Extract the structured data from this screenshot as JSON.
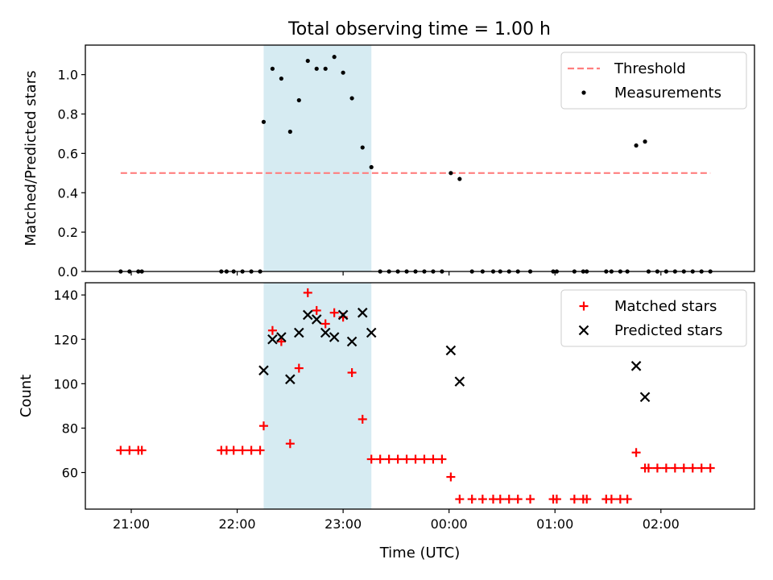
{
  "figure_title": "Total observing time = 1.00 h",
  "colors": {
    "threshold": "#ff7f7f",
    "measurements": "#000000",
    "matched": "#ff0000",
    "predicted": "#000000",
    "highlight": "#add8e6"
  },
  "chart_data": [
    {
      "type": "scatter",
      "title": "Total observing time = 1.00 h",
      "xlabel": "",
      "ylabel": "Matched/Predicted stars",
      "xlim": [
        "20:34",
        "02:53"
      ],
      "ylim": [
        0,
        1.15
      ],
      "x_ticks": [
        "21:00",
        "22:00",
        "23:00",
        "00:00",
        "01:00",
        "02:00"
      ],
      "y_ticks": [
        "0.0",
        "0.2",
        "0.4",
        "0.6",
        "0.8",
        "1.0"
      ],
      "legend": {
        "position": "top-right",
        "entries": [
          "Threshold",
          "Measurements"
        ]
      },
      "highlight_span": {
        "start": "22:15",
        "end": "23:16"
      },
      "threshold": {
        "name": "Threshold",
        "y": 0.5,
        "x_start": "20:54",
        "x_end": "02:28"
      },
      "series": [
        {
          "name": "Measurements",
          "marker": "dot",
          "points": [
            [
              "20:54",
              0
            ],
            [
              "20:59",
              0
            ],
            [
              "21:04",
              0
            ],
            [
              "21:06",
              0
            ],
            [
              "21:51",
              0
            ],
            [
              "21:54",
              0
            ],
            [
              "21:58",
              0
            ],
            [
              "22:03",
              0
            ],
            [
              "22:08",
              0
            ],
            [
              "22:13",
              0
            ],
            [
              "22:15",
              0.76
            ],
            [
              "22:20",
              1.03
            ],
            [
              "22:25",
              0.98
            ],
            [
              "22:30",
              0.71
            ],
            [
              "22:35",
              0.87
            ],
            [
              "22:40",
              1.07
            ],
            [
              "22:45",
              1.03
            ],
            [
              "22:50",
              1.03
            ],
            [
              "22:55",
              1.09
            ],
            [
              "23:00",
              1.01
            ],
            [
              "23:05",
              0.88
            ],
            [
              "23:11",
              0.63
            ],
            [
              "23:16",
              0.53
            ],
            [
              "23:21",
              0
            ],
            [
              "23:26",
              0
            ],
            [
              "23:31",
              0
            ],
            [
              "23:36",
              0
            ],
            [
              "23:41",
              0
            ],
            [
              "23:46",
              0
            ],
            [
              "23:51",
              0
            ],
            [
              "23:56",
              0
            ],
            [
              "00:01",
              0.5
            ],
            [
              "00:06",
              0.47
            ],
            [
              "00:13",
              0
            ],
            [
              "00:19",
              0
            ],
            [
              "00:25",
              0
            ],
            [
              "00:29",
              0
            ],
            [
              "00:34",
              0
            ],
            [
              "00:39",
              0
            ],
            [
              "00:46",
              0
            ],
            [
              "00:59",
              0
            ],
            [
              "01:01",
              0
            ],
            [
              "01:11",
              0
            ],
            [
              "01:16",
              0
            ],
            [
              "01:18",
              0
            ],
            [
              "01:29",
              0
            ],
            [
              "01:32",
              0
            ],
            [
              "01:37",
              0
            ],
            [
              "01:41",
              0
            ],
            [
              "01:46",
              0.64
            ],
            [
              "01:51",
              0.66
            ],
            [
              "01:53",
              0
            ],
            [
              "01:58",
              0
            ],
            [
              "02:03",
              0
            ],
            [
              "02:08",
              0
            ],
            [
              "02:13",
              0
            ],
            [
              "02:18",
              0
            ],
            [
              "02:23",
              0
            ],
            [
              "02:28",
              0
            ]
          ]
        }
      ]
    },
    {
      "type": "scatter",
      "title": "",
      "xlabel": "Time (UTC)",
      "ylabel": "Count",
      "xlim": [
        "20:34",
        "02:53"
      ],
      "ylim": [
        43.5,
        145.5
      ],
      "x_ticks": [
        "21:00",
        "22:00",
        "23:00",
        "00:00",
        "01:00",
        "02:00"
      ],
      "y_ticks": [
        "60",
        "80",
        "100",
        "120",
        "140"
      ],
      "legend": {
        "position": "top-right",
        "entries": [
          "Matched stars",
          "Predicted stars"
        ]
      },
      "highlight_span": {
        "start": "22:15",
        "end": "23:16"
      },
      "series": [
        {
          "name": "Matched stars",
          "marker": "plus",
          "points": [
            [
              "20:54",
              70
            ],
            [
              "20:59",
              70
            ],
            [
              "21:04",
              70
            ],
            [
              "21:06",
              70
            ],
            [
              "21:51",
              70
            ],
            [
              "21:54",
              70
            ],
            [
              "21:58",
              70
            ],
            [
              "22:03",
              70
            ],
            [
              "22:08",
              70
            ],
            [
              "22:13",
              70
            ],
            [
              "22:15",
              81
            ],
            [
              "22:20",
              124
            ],
            [
              "22:25",
              119
            ],
            [
              "22:30",
              73
            ],
            [
              "22:35",
              107
            ],
            [
              "22:40",
              141
            ],
            [
              "22:45",
              133
            ],
            [
              "22:50",
              127
            ],
            [
              "22:55",
              132
            ],
            [
              "23:00",
              130
            ],
            [
              "23:05",
              105
            ],
            [
              "23:11",
              84
            ],
            [
              "23:16",
              66
            ],
            [
              "23:21",
              66
            ],
            [
              "23:26",
              66
            ],
            [
              "23:31",
              66
            ],
            [
              "23:36",
              66
            ],
            [
              "23:41",
              66
            ],
            [
              "23:46",
              66
            ],
            [
              "23:51",
              66
            ],
            [
              "23:56",
              66
            ],
            [
              "00:01",
              58
            ],
            [
              "00:06",
              48
            ],
            [
              "00:13",
              48
            ],
            [
              "00:19",
              48
            ],
            [
              "00:25",
              48
            ],
            [
              "00:29",
              48
            ],
            [
              "00:34",
              48
            ],
            [
              "00:39",
              48
            ],
            [
              "00:46",
              48
            ],
            [
              "00:59",
              48
            ],
            [
              "01:01",
              48
            ],
            [
              "01:11",
              48
            ],
            [
              "01:16",
              48
            ],
            [
              "01:18",
              48
            ],
            [
              "01:29",
              48
            ],
            [
              "01:32",
              48
            ],
            [
              "01:37",
              48
            ],
            [
              "01:41",
              48
            ],
            [
              "01:46",
              69
            ],
            [
              "01:51",
              62
            ],
            [
              "01:53",
              62
            ],
            [
              "01:58",
              62
            ],
            [
              "02:03",
              62
            ],
            [
              "02:08",
              62
            ],
            [
              "02:13",
              62
            ],
            [
              "02:18",
              62
            ],
            [
              "02:23",
              62
            ],
            [
              "02:28",
              62
            ]
          ]
        },
        {
          "name": "Predicted stars",
          "marker": "x",
          "points": [
            [
              "22:15",
              106
            ],
            [
              "22:20",
              120
            ],
            [
              "22:25",
              121
            ],
            [
              "22:30",
              102
            ],
            [
              "22:35",
              123
            ],
            [
              "22:40",
              131
            ],
            [
              "22:45",
              129
            ],
            [
              "22:50",
              123
            ],
            [
              "22:55",
              121
            ],
            [
              "23:00",
              131
            ],
            [
              "23:05",
              119
            ],
            [
              "23:11",
              132
            ],
            [
              "23:16",
              123
            ],
            [
              "00:01",
              115
            ],
            [
              "00:06",
              101
            ],
            [
              "01:46",
              108
            ],
            [
              "01:51",
              94
            ]
          ]
        }
      ]
    }
  ]
}
